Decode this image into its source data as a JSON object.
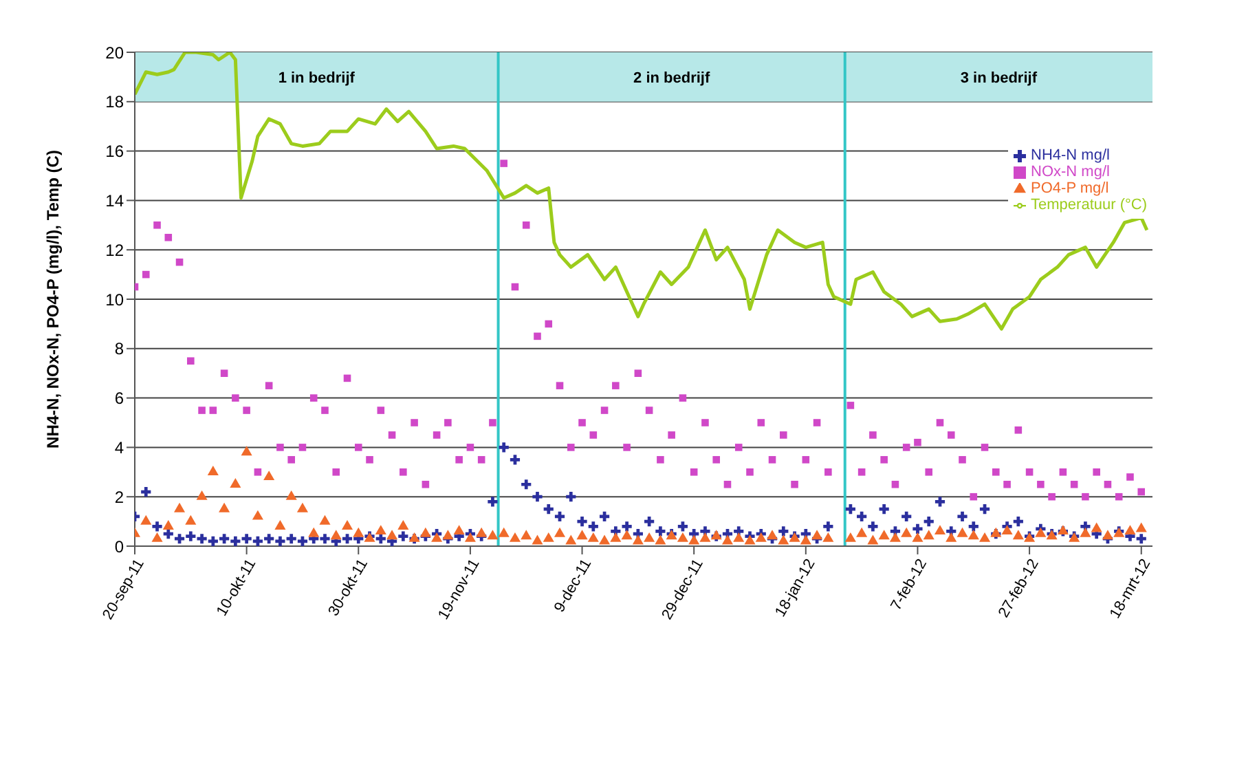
{
  "chart_data": {
    "type": "scatter",
    "ylabel": "NH4-N, NOx-N, PO4-P (mg/l), Temp (C)",
    "x": [
      "2011-09-20",
      "2011-09-22",
      "2011-09-24",
      "2011-09-26",
      "2011-09-28",
      "2011-09-30",
      "2011-10-02",
      "2011-10-04",
      "2011-10-06",
      "2011-10-08",
      "2011-10-10",
      "2011-10-12",
      "2011-10-14",
      "2011-10-16",
      "2011-10-18",
      "2011-10-20",
      "2011-10-22",
      "2011-10-24",
      "2011-10-26",
      "2011-10-28",
      "2011-10-30",
      "2011-11-01",
      "2011-11-03",
      "2011-11-05",
      "2011-11-07",
      "2011-11-09",
      "2011-11-11",
      "2011-11-13",
      "2011-11-15",
      "2011-11-17",
      "2011-11-19",
      "2011-11-21",
      "2011-11-23",
      "2011-11-25",
      "2011-11-27",
      "2011-11-29",
      "2011-12-01",
      "2011-12-03",
      "2011-12-05",
      "2011-12-07",
      "2011-12-09",
      "2011-12-11",
      "2011-12-13",
      "2011-12-15",
      "2011-12-17",
      "2011-12-19",
      "2011-12-21",
      "2011-12-23",
      "2011-12-25",
      "2011-12-27",
      "2011-12-29",
      "2011-12-31",
      "2012-01-02",
      "2012-01-04",
      "2012-01-06",
      "2012-01-08",
      "2012-01-10",
      "2012-01-12",
      "2012-01-14",
      "2012-01-16",
      "2012-01-18",
      "2012-01-20",
      "2012-01-22",
      "2012-01-24",
      "2012-01-26",
      "2012-01-28",
      "2012-01-30",
      "2012-02-01",
      "2012-02-03",
      "2012-02-05",
      "2012-02-07",
      "2012-02-09",
      "2012-02-11",
      "2012-02-13",
      "2012-02-15",
      "2012-02-17",
      "2012-02-19",
      "2012-02-21",
      "2012-02-23",
      "2012-02-25",
      "2012-02-27",
      "2012-02-29",
      "2012-03-02",
      "2012-03-04",
      "2012-03-06",
      "2012-03-08",
      "2012-03-10",
      "2012-03-12",
      "2012-03-14",
      "2012-03-16",
      "2012-03-18"
    ],
    "series": [
      {
        "name": "NH4-N mg/l",
        "color": "#2b2f9e",
        "marker": "cross",
        "values": [
          1.2,
          2.2,
          0.8,
          0.5,
          0.3,
          0.4,
          0.3,
          0.2,
          0.3,
          0.2,
          0.3,
          0.2,
          0.3,
          0.2,
          0.3,
          0.2,
          0.3,
          0.3,
          0.2,
          0.3,
          0.3,
          0.4,
          0.3,
          0.2,
          0.4,
          0.3,
          0.4,
          0.5,
          0.3,
          0.4,
          0.5,
          0.4,
          1.8,
          4,
          3.5,
          2.5,
          2,
          1.5,
          1.2,
          2,
          1,
          0.8,
          1.2,
          0.6,
          0.8,
          0.5,
          1,
          0.6,
          0.5,
          0.8,
          0.5,
          0.6,
          0.4,
          0.5,
          0.6,
          0.4,
          0.5,
          0.3,
          0.6,
          0.4,
          0.5,
          0.3,
          0.8,
          null,
          1.5,
          1.2,
          0.8,
          1.5,
          0.6,
          1.2,
          0.7,
          1,
          1.8,
          0.6,
          1.2,
          0.8,
          1.5,
          0.5,
          0.8,
          1,
          0.4,
          0.7,
          0.5,
          0.6,
          0.4,
          0.8,
          0.5,
          0.3,
          0.6,
          0.4,
          0.3
        ]
      },
      {
        "name": "NOx-N mg/l",
        "color": "#d048c8",
        "marker": "square",
        "values": [
          10.5,
          11,
          13,
          12.5,
          11.5,
          7.5,
          5.5,
          5.5,
          7,
          6,
          5.5,
          3,
          6.5,
          4,
          3.5,
          4,
          6,
          5.5,
          3,
          6.8,
          4,
          3.5,
          5.5,
          4.5,
          3,
          5,
          2.5,
          4.5,
          5,
          3.5,
          4,
          3.5,
          5,
          15.5,
          10.5,
          13,
          8.5,
          9,
          6.5,
          4,
          5,
          4.5,
          5.5,
          6.5,
          4,
          7,
          5.5,
          3.5,
          4.5,
          6,
          3,
          5,
          3.5,
          2.5,
          4,
          3,
          5,
          3.5,
          4.5,
          2.5,
          3.5,
          5,
          3,
          null,
          5.7,
          3,
          4.5,
          3.5,
          2.5,
          4,
          4.2,
          3,
          5,
          4.5,
          3.5,
          2,
          4,
          3,
          2.5,
          4.7,
          3,
          2.5,
          2,
          3,
          2.5,
          2,
          3,
          2.5,
          2,
          2.8,
          2.2
        ]
      },
      {
        "name": "PO4-P mg/l",
        "color": "#f06a2a",
        "marker": "triangle",
        "values": [
          0.5,
          1,
          0.3,
          0.8,
          1.5,
          1,
          2,
          3,
          1.5,
          2.5,
          3.8,
          1.2,
          2.8,
          0.8,
          2,
          1.5,
          0.5,
          1,
          0.4,
          0.8,
          0.5,
          0.3,
          0.6,
          0.4,
          0.8,
          0.3,
          0.5,
          0.3,
          0.4,
          0.6,
          0.3,
          0.5,
          0.4,
          0.5,
          0.3,
          0.4,
          0.2,
          0.3,
          0.5,
          0.2,
          0.4,
          0.3,
          0.2,
          0.3,
          0.4,
          0.2,
          0.3,
          0.2,
          0.4,
          0.3,
          0.2,
          0.3,
          0.4,
          0.2,
          0.3,
          0.2,
          0.3,
          0.4,
          0.2,
          0.3,
          0.2,
          0.4,
          0.3,
          null,
          0.3,
          0.5,
          0.2,
          0.4,
          0.3,
          0.5,
          0.3,
          0.4,
          0.6,
          0.3,
          0.5,
          0.4,
          0.3,
          0.5,
          0.6,
          0.4,
          0.3,
          0.5,
          0.4,
          0.6,
          0.3,
          0.5,
          0.7,
          0.4,
          0.5,
          0.6,
          0.7
        ]
      },
      {
        "name": "Temperatuur (°C)",
        "type": "line",
        "color": "#9ccc1c",
        "x": [
          "2011-09-20",
          "2011-09-22",
          "2011-09-24",
          "2011-09-26",
          "2011-09-27",
          "2011-09-29",
          "2011-10-01",
          "2011-10-04",
          "2011-10-05",
          "2011-10-07",
          "2011-10-08",
          "2011-10-09",
          "2011-10-11",
          "2011-10-12",
          "2011-10-14",
          "2011-10-16",
          "2011-10-18",
          "2011-10-20",
          "2011-10-23",
          "2011-10-25",
          "2011-10-28",
          "2011-10-30",
          "2011-11-02",
          "2011-11-04",
          "2011-11-06",
          "2011-11-08",
          "2011-11-11",
          "2011-11-13",
          "2011-11-16",
          "2011-11-18",
          "2011-11-22",
          "2011-11-25",
          "2011-11-27",
          "2011-11-29",
          "2011-12-01",
          "2011-12-03",
          "2011-12-04",
          "2011-12-05",
          "2011-12-07",
          "2011-12-10",
          "2011-12-13",
          "2011-12-15",
          "2011-12-18",
          "2011-12-19",
          "2011-12-20",
          "2011-12-23",
          "2011-12-25",
          "2011-12-28",
          "2011-12-31",
          "2012-01-02",
          "2012-01-04",
          "2012-01-07",
          "2012-01-08",
          "2012-01-11",
          "2012-01-13",
          "2012-01-16",
          "2012-01-18",
          "2012-01-21",
          "2012-01-22",
          "2012-01-23",
          "2012-01-26",
          "2012-01-27",
          "2012-01-30",
          "2012-02-01",
          "2012-02-04",
          "2012-02-06",
          "2012-02-09",
          "2012-02-11",
          "2012-02-14",
          "2012-02-16",
          "2012-02-19",
          "2012-02-22",
          "2012-02-24",
          "2012-02-27",
          "2012-02-29",
          "2012-03-03",
          "2012-03-05",
          "2012-03-08",
          "2012-03-10",
          "2012-03-13",
          "2012-03-15",
          "2012-03-18",
          "2012-03-19"
        ],
        "values": [
          18.3,
          19.2,
          19.1,
          19.2,
          19.3,
          20,
          20,
          19.9,
          19.7,
          20,
          19.7,
          14.1,
          15.6,
          16.6,
          17.3,
          17.1,
          16.3,
          16.2,
          16.3,
          16.8,
          16.8,
          17.3,
          17.1,
          17.7,
          17.2,
          17.6,
          16.8,
          16.1,
          16.2,
          16.1,
          15.2,
          14.1,
          14.3,
          14.6,
          14.3,
          14.5,
          12.3,
          11.8,
          11.3,
          11.8,
          10.8,
          11.3,
          9.8,
          9.3,
          9.8,
          11.1,
          10.6,
          11.3,
          12.8,
          11.6,
          12.1,
          10.8,
          9.6,
          11.8,
          12.8,
          12.3,
          12.1,
          12.3,
          10.6,
          10.1,
          9.8,
          10.8,
          11.1,
          10.3,
          9.8,
          9.3,
          9.6,
          9.1,
          9.2,
          9.4,
          9.8,
          8.8,
          9.6,
          10.1,
          10.8,
          11.3,
          11.8,
          12.1,
          11.3,
          12.3,
          13.1,
          13.3,
          12.8
        ]
      }
    ],
    "xlim": [
      "2011-09-20",
      "2012-03-20"
    ],
    "xticks": [
      {
        "value": "2011-09-20",
        "label": "20-sep-11"
      },
      {
        "value": "2011-10-10",
        "label": "10-okt-11"
      },
      {
        "value": "2011-10-30",
        "label": "30-okt-11"
      },
      {
        "value": "2011-11-19",
        "label": "19-nov-11"
      },
      {
        "value": "2011-12-09",
        "label": "9-dec-11"
      },
      {
        "value": "2011-12-29",
        "label": "29-dec-11"
      },
      {
        "value": "2012-01-18",
        "label": "18-jan-12"
      },
      {
        "value": "2012-02-07",
        "label": "7-feb-12"
      },
      {
        "value": "2012-02-27",
        "label": "27-feb-12"
      },
      {
        "value": "2012-03-18",
        "label": "18-mrt-12"
      }
    ],
    "ylim": [
      0,
      20
    ],
    "yticks": [
      0,
      2,
      4,
      6,
      8,
      10,
      12,
      14,
      16,
      18,
      20
    ],
    "grid": "y",
    "legend": "top right",
    "bands": [
      {
        "axis": "y",
        "from": 18,
        "to": 20,
        "color": "#b7e8e8"
      }
    ],
    "ref_lines": [
      {
        "axis": "x",
        "value": "2011-11-24",
        "color": "#33c6c6"
      },
      {
        "axis": "x",
        "value": "2012-01-25",
        "color": "#33c6c6"
      }
    ],
    "annotations": [
      "1 in bedrijf",
      "2 in bedrijf",
      "3 in bedrijf"
    ]
  }
}
